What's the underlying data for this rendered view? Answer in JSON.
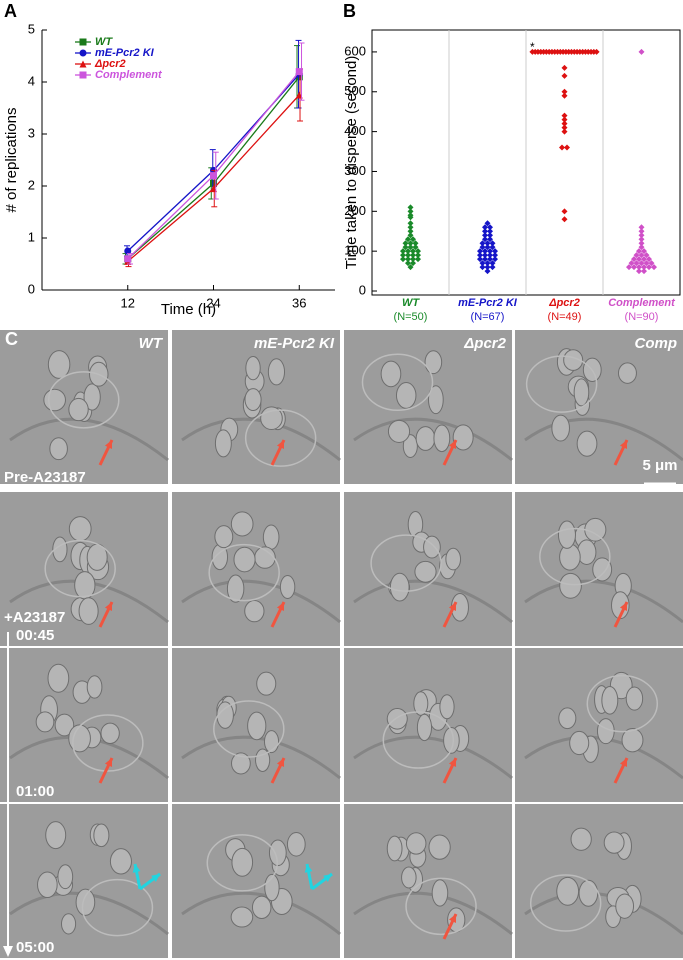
{
  "chart_data": [
    {
      "type": "line",
      "panel": "A",
      "x_label": "Time (h)",
      "y_label": "# of replications",
      "x": [
        12,
        24,
        36
      ],
      "xlim": [
        0,
        41
      ],
      "xticks": [
        12,
        24,
        36
      ],
      "ylim": [
        0,
        5
      ],
      "yticks": [
        0,
        1,
        2,
        3,
        4,
        5
      ],
      "series": [
        {
          "name": "WT",
          "color": "#1a7a1a",
          "marker": "square",
          "values": [
            0.6,
            2.05,
            4.1
          ],
          "errors": [
            0.1,
            0.3,
            0.6
          ]
        },
        {
          "name": "mE-Pcr2 KI",
          "color": "#1515c8",
          "marker": "circle",
          "values": [
            0.75,
            2.3,
            4.15
          ],
          "errors": [
            0.1,
            0.4,
            0.65
          ]
        },
        {
          "name": "Δpcr2",
          "color": "#dd1111",
          "marker": "triangle",
          "values": [
            0.55,
            1.95,
            3.75
          ],
          "errors": [
            0.1,
            0.35,
            0.5
          ]
        },
        {
          "name": "Complement",
          "color": "#cc55dd",
          "marker": "square",
          "values": [
            0.6,
            2.2,
            4.2
          ],
          "errors": [
            0.1,
            0.45,
            0.55
          ]
        }
      ]
    },
    {
      "type": "strip",
      "panel": "B",
      "y_label": "Time taken to disperse (second)",
      "ylim": [
        -10,
        655
      ],
      "yticks": [
        0,
        100,
        200,
        300,
        400,
        500,
        600
      ],
      "annotation": "*",
      "categories": [
        "WT",
        "mE-Pcr2 KI",
        "Δpcr2",
        "Complement"
      ],
      "n_labels": [
        "(N=50)",
        "(N=67)",
        "(N=49)",
        "(N=90)"
      ],
      "series": [
        {
          "name": "WT",
          "color": "#1a8a2a",
          "values": [
            210,
            200,
            190,
            185,
            170,
            160,
            150,
            140,
            130,
            130,
            120,
            120,
            120,
            110,
            110,
            110,
            100,
            100,
            100,
            100,
            90,
            90,
            90,
            90,
            80,
            80,
            80,
            80,
            70,
            70,
            60
          ]
        },
        {
          "name": "mE-Pcr2 KI",
          "color": "#1515c8",
          "values": [
            170,
            160,
            160,
            150,
            150,
            140,
            140,
            130,
            130,
            120,
            120,
            120,
            110,
            110,
            110,
            100,
            100,
            100,
            100,
            90,
            90,
            90,
            90,
            80,
            80,
            80,
            80,
            70,
            70,
            70,
            60,
            60,
            60,
            50
          ]
        },
        {
          "name": "Δpcr2",
          "color": "#dd1111",
          "values": [
            600,
            600,
            600,
            600,
            600,
            600,
            600,
            600,
            600,
            600,
            600,
            600,
            600,
            600,
            600,
            600,
            600,
            600,
            600,
            600,
            600,
            600,
            600,
            600,
            560,
            540,
            500,
            490,
            440,
            430,
            420,
            410,
            400,
            360,
            360,
            200,
            180
          ]
        },
        {
          "name": "Complement",
          "color": "#d050c8",
          "values": [
            600,
            160,
            150,
            140,
            130,
            120,
            110,
            100,
            100,
            90,
            90,
            90,
            80,
            80,
            80,
            80,
            70,
            70,
            70,
            70,
            70,
            60,
            60,
            60,
            60,
            60,
            60,
            50,
            50
          ]
        }
      ]
    }
  ],
  "panel_labels": [
    "A",
    "B",
    "C"
  ],
  "panel_c": {
    "columns": [
      "WT",
      "mE-Pcr2 KI",
      "Δpcr2",
      "Comp"
    ],
    "rows": [
      "Pre-A23187",
      "+A23187"
    ],
    "times": [
      "00:45",
      "01:00",
      "05:00"
    ],
    "scale_bar": "5 μm"
  }
}
